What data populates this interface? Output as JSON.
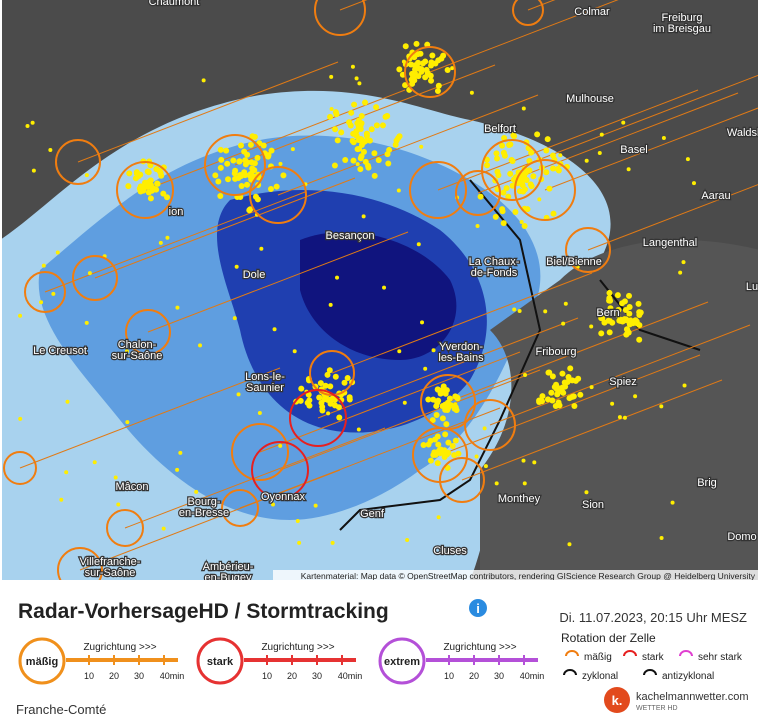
{
  "map": {
    "labels": [
      {
        "lines": [
          "Chaumont"
        ]
      },
      {
        "lines": [
          "Colmar"
        ]
      },
      {
        "lines": [
          "Freiburg",
          "im Breisgau"
        ]
      },
      {
        "lines": [
          "Mulhouse"
        ]
      },
      {
        "lines": [
          "Belfort"
        ]
      },
      {
        "lines": [
          "Basel"
        ]
      },
      {
        "lines": [
          "Waldsh"
        ]
      },
      {
        "lines": [
          "Aarau"
        ]
      },
      {
        "lines": [
          "Langenthal"
        ]
      },
      {
        "lines": [
          "Besançon"
        ]
      },
      {
        "lines": [
          "ion"
        ]
      },
      {
        "lines": [
          "La Chaux-",
          "de-Fonds"
        ]
      },
      {
        "lines": [
          "Biel/Bienne"
        ]
      },
      {
        "lines": [
          "Dole"
        ]
      },
      {
        "lines": [
          "Lu"
        ]
      },
      {
        "lines": [
          "Bern"
        ]
      },
      {
        "lines": [
          "Le Creusot"
        ]
      },
      {
        "lines": [
          "Chalon-",
          "sur-Saône"
        ]
      },
      {
        "lines": [
          "Yverdon-",
          "les-Bains"
        ]
      },
      {
        "lines": [
          "Fribourg"
        ]
      },
      {
        "lines": [
          "Lons-le-",
          "Saunier"
        ]
      },
      {
        "lines": [
          "Spiez"
        ]
      },
      {
        "lines": [
          "Mâcon"
        ]
      },
      {
        "lines": [
          "Brig"
        ]
      },
      {
        "lines": [
          "Monthey"
        ]
      },
      {
        "lines": [
          "Bourg-",
          "en-Bresse"
        ]
      },
      {
        "lines": [
          "Oyonnax"
        ]
      },
      {
        "lines": [
          "Sion"
        ]
      },
      {
        "lines": [
          "Genf"
        ]
      },
      {
        "lines": [
          "Domo"
        ]
      },
      {
        "lines": [
          "Cluses"
        ]
      },
      {
        "lines": [
          "Villefranche-",
          "sur-Saône"
        ]
      },
      {
        "lines": [
          "Ambérieu-",
          "en-Bugey"
        ]
      }
    ],
    "attribution": "Kartenmaterial: Map data © OpenStreetMap contributors, rendering GIScience Research Group @ Heidelberg University"
  },
  "legend": {
    "title": "Radar-VorhersageHD / Stormtracking",
    "datetime": "Di. 11.07.2023, 20:15 Uhr MESZ",
    "levels": [
      {
        "name": "mäßig",
        "direction": "Zugrichtung >>>",
        "ticks": [
          "10",
          "20",
          "30",
          "40min"
        ]
      },
      {
        "name": "stark",
        "direction": "Zugrichtung >>>",
        "ticks": [
          "10",
          "20",
          "30",
          "40min"
        ]
      },
      {
        "name": "extrem",
        "direction": "Zugrichtung >>>",
        "ticks": [
          "10",
          "20",
          "30",
          "40min"
        ]
      }
    ],
    "rotation": {
      "title": "Rotation der Zelle",
      "items": [
        "mäßig",
        "stark",
        "sehr stark",
        "zyklonal",
        "antizyklonal"
      ]
    },
    "brand": {
      "name": "kachelmannwetter.com",
      "sub": "WETTER HD",
      "mark": "k."
    },
    "region": "Franche-Comté"
  }
}
